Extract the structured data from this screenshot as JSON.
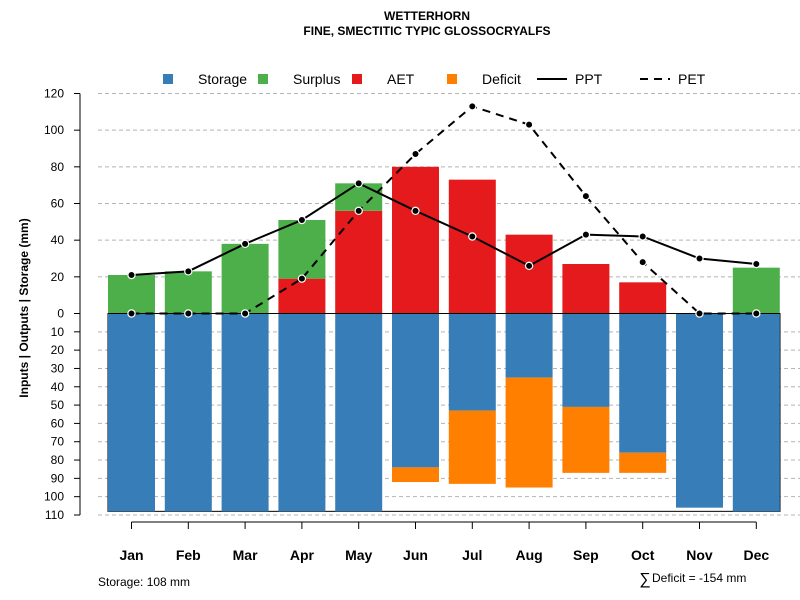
{
  "chart_data": {
    "type": "bar",
    "title": "WETTERHORN",
    "subtitle": "FINE, SMECTITIC TYPIC GLOSSOCRYALFS",
    "ylabel": "Inputs | Outputs | Storage    (mm)",
    "xlabel": "",
    "categories": [
      "Jan",
      "Feb",
      "Mar",
      "Apr",
      "May",
      "Jun",
      "Jul",
      "Aug",
      "Sep",
      "Oct",
      "Nov",
      "Dec"
    ],
    "upper_ylim": [
      0,
      120
    ],
    "upper_ticks": [
      "0",
      "20",
      "40",
      "60",
      "80",
      "100",
      "120"
    ],
    "lower_ylim": [
      0,
      110
    ],
    "lower_ticks": [
      "0",
      "10",
      "20",
      "30",
      "40",
      "50",
      "60",
      "70",
      "80",
      "90",
      "100",
      "110"
    ],
    "legend": [
      {
        "label": "Storage",
        "type": "square",
        "color": "#377EB8"
      },
      {
        "label": "Surplus",
        "type": "square",
        "color": "#4DAF4A"
      },
      {
        "label": "AET",
        "type": "square",
        "color": "#E41A1C"
      },
      {
        "label": "Deficit",
        "type": "square",
        "color": "#FF7F00"
      },
      {
        "label": "PPT",
        "type": "solid-line",
        "color": "#000000"
      },
      {
        "label": "PET",
        "type": "dashed-line",
        "color": "#000000"
      }
    ],
    "series": [
      {
        "name": "AET",
        "color": "#E41A1C",
        "values": [
          0,
          0,
          0,
          19,
          56,
          80,
          73,
          43,
          27,
          17,
          0,
          0
        ]
      },
      {
        "name": "Surplus",
        "color": "#4DAF4A",
        "values": [
          21,
          23,
          38,
          32,
          15,
          0,
          0,
          0,
          0,
          0,
          0,
          25
        ]
      },
      {
        "name": "PPT",
        "color": "#000000",
        "style": "solid",
        "values": [
          21,
          23,
          38,
          51,
          71,
          56,
          42,
          26,
          43,
          42,
          30,
          27
        ]
      },
      {
        "name": "PET",
        "color": "#000000",
        "style": "dashed",
        "values": [
          0,
          0,
          0,
          19,
          56,
          87,
          113,
          103,
          64,
          28,
          0,
          0
        ]
      },
      {
        "name": "Storage",
        "color": "#377EB8",
        "values": [
          108,
          108,
          108,
          108,
          108,
          84,
          53,
          35,
          51,
          76,
          106,
          108
        ]
      },
      {
        "name": "Deficit",
        "color": "#FF7F00",
        "values": [
          0,
          0,
          0,
          0,
          0,
          8,
          40,
          60,
          36,
          11,
          0,
          0
        ]
      }
    ],
    "storage_capacity": 108,
    "grid": true
  },
  "footer": {
    "storage_label": "Storage: 108 mm",
    "deficit_symbol": "∑",
    "deficit_label": "Deficit = -154 mm"
  }
}
